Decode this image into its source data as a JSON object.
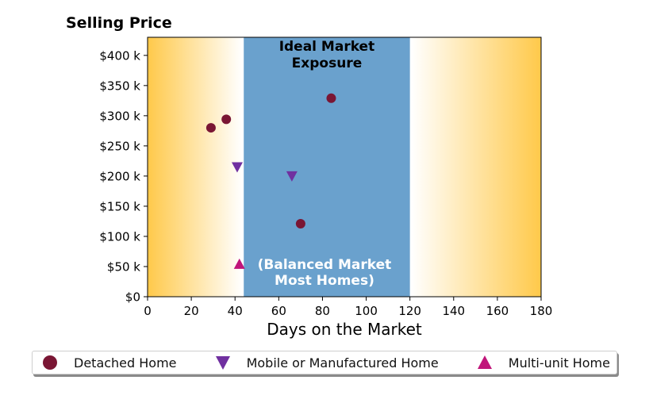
{
  "chart_data": {
    "type": "scatter",
    "title": "Selling Price",
    "xlabel": "Days on the Market",
    "ylabel": "",
    "xlim": [
      0,
      180
    ],
    "ylim": [
      0,
      430000
    ],
    "x_ticks": [
      0,
      20,
      40,
      60,
      80,
      100,
      120,
      140,
      160,
      180
    ],
    "x_tick_labels": [
      "0",
      "20",
      "40",
      "60",
      "80",
      "100",
      "120",
      "140",
      "160",
      "180"
    ],
    "y_ticks": [
      0,
      50000,
      100000,
      150000,
      200000,
      250000,
      300000,
      350000,
      400000
    ],
    "y_tick_labels": [
      "$0",
      "$50 k",
      "$100 k",
      "$150 k",
      "$200 k",
      "$250 k",
      "$300 k",
      "$350 k",
      "$400 k"
    ],
    "grid": false,
    "legend_position": "bottom",
    "background_colors": {
      "edge": "#ffc94a",
      "middle": "#ffffff"
    },
    "band": {
      "x_range": [
        44,
        120
      ],
      "color": "#6aa1cd",
      "label_top": [
        "Ideal Market",
        "Exposure"
      ],
      "label_bottom": [
        "(Balanced Market",
        "Most Homes)"
      ]
    },
    "series": [
      {
        "name": "Detached Home",
        "marker": "circle",
        "color": "#7a1634",
        "points": [
          [
            29,
            280000
          ],
          [
            36,
            294000
          ],
          [
            84,
            329000
          ],
          [
            70,
            121000
          ]
        ]
      },
      {
        "name": "Mobile or Manufactured Home",
        "marker": "triangle-down",
        "color": "#7030a0",
        "points": [
          [
            41,
            215000
          ],
          [
            66,
            200000
          ]
        ]
      },
      {
        "name": "Multi-unit Home",
        "marker": "triangle-up",
        "color": "#c0157a",
        "points": [
          [
            42,
            54000
          ]
        ]
      }
    ]
  }
}
